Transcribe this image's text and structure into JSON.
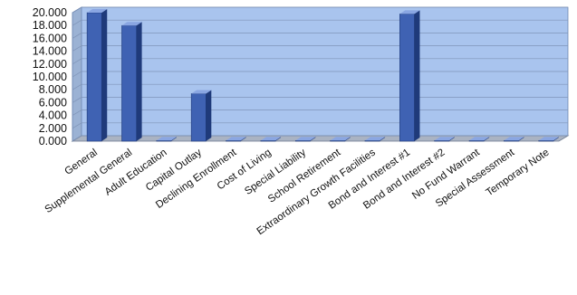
{
  "chart_data": {
    "type": "bar",
    "title": "",
    "xlabel": "",
    "ylabel": "",
    "ylim": [
      0,
      20
    ],
    "yticks": [
      "0.000",
      "2.000",
      "4.000",
      "6.000",
      "8.000",
      "10.000",
      "12.000",
      "14.000",
      "16.000",
      "18.000",
      "20.000"
    ],
    "grid": true,
    "legend": "none",
    "categories": [
      "General",
      "Supplemental General",
      "Adult Education",
      "Capital Outlay",
      "Declining Enrollment",
      "Cost of Living",
      "Special Liability",
      "School Retirement",
      "Extraordinary Growth Facilities",
      "Bond and Interest #1",
      "Bond and Interest #2",
      "No Fund Warrant",
      "Special Assessment",
      "Temporary Note"
    ],
    "values": [
      20.0,
      18.0,
      0.1,
      7.4,
      0.1,
      0.1,
      0.1,
      0.1,
      0.1,
      19.8,
      0.1,
      0.1,
      0.1,
      0.1
    ],
    "colors": {
      "bar": "#3f62b3",
      "bar_top": "#8aa6e2",
      "bar_side": "#1f3a7a",
      "wall": "#a9c4ee",
      "wall_side": "#9bb2d4",
      "floor": "#aab3c2",
      "grid": "#7f94b8"
    }
  }
}
